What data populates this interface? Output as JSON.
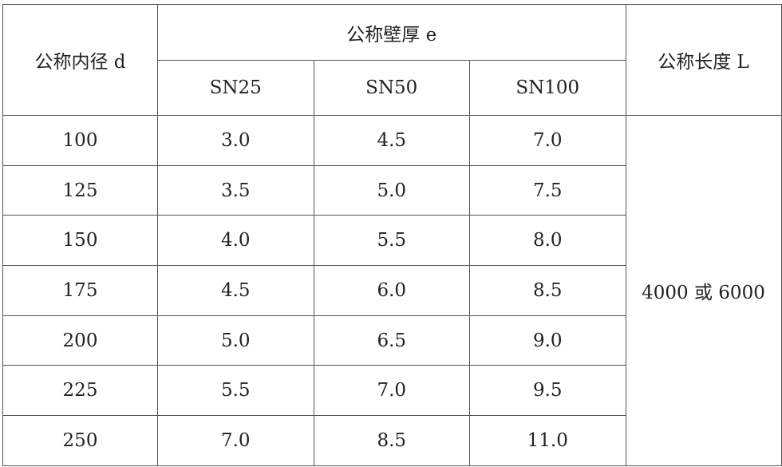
{
  "header": {
    "diameter": "公称内径 d",
    "thickness": "公称壁厚 e",
    "length": "公称长度 L",
    "classes": [
      "SN25",
      "SN50",
      "SN100"
    ]
  },
  "rows": [
    {
      "d": "100",
      "sn25": "3.0",
      "sn50": "4.5",
      "sn100": "7.0"
    },
    {
      "d": "125",
      "sn25": "3.5",
      "sn50": "5.0",
      "sn100": "7.5"
    },
    {
      "d": "150",
      "sn25": "4.0",
      "sn50": "5.5",
      "sn100": "8.0"
    },
    {
      "d": "175",
      "sn25": "4.5",
      "sn50": "6.0",
      "sn100": "8.5"
    },
    {
      "d": "200",
      "sn25": "5.0",
      "sn50": "6.5",
      "sn100": "9.0"
    },
    {
      "d": "225",
      "sn25": "5.5",
      "sn50": "7.0",
      "sn100": "9.5"
    },
    {
      "d": "250",
      "sn25": "7.0",
      "sn50": "8.5",
      "sn100": "11.0"
    }
  ],
  "length_value": "4000 或 6000"
}
